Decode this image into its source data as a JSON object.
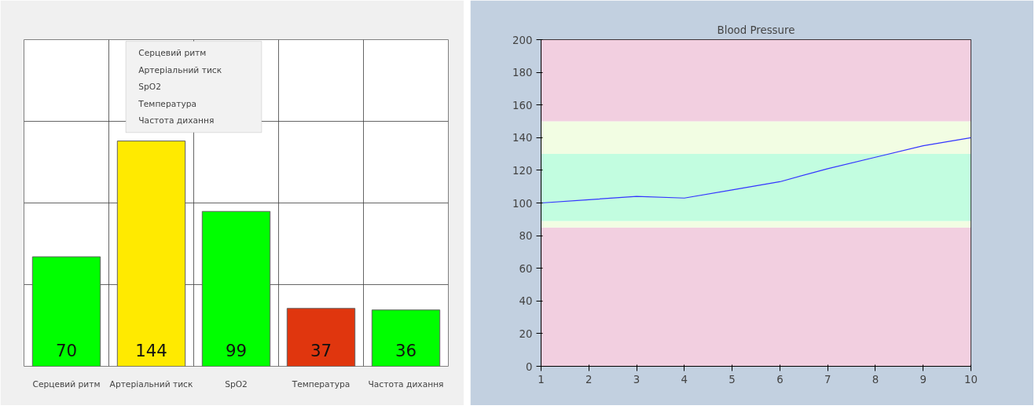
{
  "chart_data": [
    {
      "type": "bar",
      "categories": [
        "Серцевий ритм",
        "Артеріальний тиск",
        "SpO2",
        "Температура",
        "Частота дихання"
      ],
      "values": [
        70,
        144,
        99,
        37,
        36
      ],
      "colors": [
        "#00ff00",
        "#ffea00",
        "#00ff00",
        "#e0360e",
        "#00ff00"
      ],
      "data_labels": true,
      "grid": true,
      "annotations": [
        "Серцевий ритм",
        "Артеріальний тиск",
        "SpO2",
        "Температура",
        "Частота дихання"
      ]
    },
    {
      "type": "line",
      "title": "Blood Pressure",
      "x": [
        1,
        2,
        3,
        4,
        5,
        6,
        7,
        8,
        9,
        10
      ],
      "values": [
        100,
        102,
        104,
        103,
        108,
        113,
        121,
        128,
        135,
        140
      ],
      "color": "#3535ff",
      "xlim": [
        1,
        10
      ],
      "ylim": [
        0,
        200
      ],
      "xticks": [
        1,
        2,
        3,
        4,
        5,
        6,
        7,
        8,
        9,
        10
      ],
      "yticks": [
        0,
        20,
        40,
        60,
        80,
        100,
        120,
        140,
        160,
        180,
        200
      ],
      "grid": false,
      "bands": [
        {
          "axis": "y",
          "from": 0,
          "to": 85,
          "color": "#f2cfe0"
        },
        {
          "axis": "y",
          "from": 85,
          "to": 89,
          "color": "#f2fde3"
        },
        {
          "axis": "y",
          "from": 89,
          "to": 130,
          "color": "#c2fde0"
        },
        {
          "axis": "y",
          "from": 130,
          "to": 150,
          "color": "#f2fde3"
        },
        {
          "axis": "y",
          "from": 150,
          "to": 200,
          "color": "#f2cfe0"
        }
      ]
    }
  ]
}
